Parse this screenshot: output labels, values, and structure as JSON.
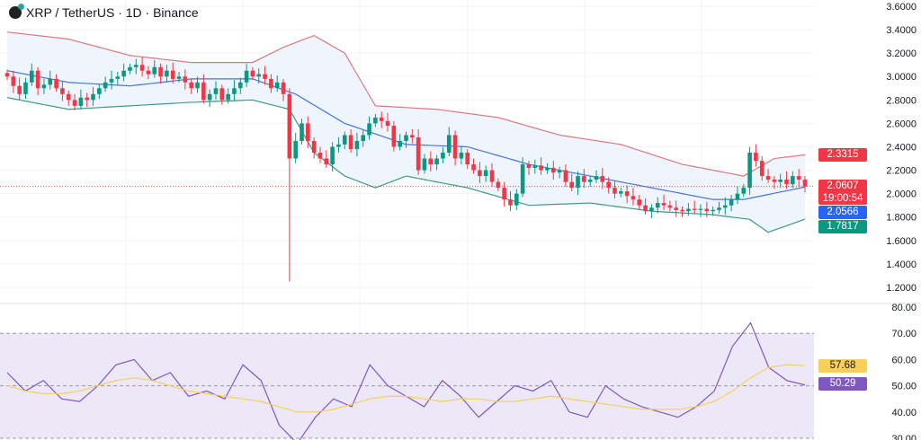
{
  "header": {
    "title": "XRP / TetherUS · 1D · Binance"
  },
  "tags": {
    "upper": "2.3315",
    "last": "2.0607",
    "countdown": "19:00:54",
    "middle": "2.0566",
    "lower": "1.7817",
    "rsi": "50.29",
    "rsi_ma": "57.68"
  },
  "colors": {
    "up": "#089981",
    "down": "#f23645",
    "upper_band": "#e0767f",
    "middle_band": "#4a72d8",
    "lower_band": "#3d9c86",
    "band_fill": "#eef5fd",
    "rsi": "#7e57c2",
    "rsi_ma": "#f7cf5a",
    "rsi_fill": "#ede8f8"
  },
  "chart_data": [
    {
      "type": "candlestick",
      "ylim": [
        1.2,
        3.6
      ],
      "yticks": [
        "3.6000",
        "3.4000",
        "3.2000",
        "3.0000",
        "2.8000",
        "2.6000",
        "2.4000",
        "2.2000",
        "2.0000",
        "1.8000",
        "1.6000",
        "1.4000",
        "1.2000"
      ],
      "closes": [
        3.0,
        2.92,
        2.85,
        2.95,
        3.05,
        2.9,
        2.93,
        2.98,
        2.9,
        2.85,
        2.8,
        2.75,
        2.82,
        2.8,
        2.85,
        2.9,
        2.95,
        2.98,
        3.0,
        3.05,
        3.08,
        3.1,
        3.05,
        3.02,
        3.08,
        3.0,
        3.05,
        2.98,
        3.0,
        2.95,
        2.9,
        2.95,
        2.8,
        2.85,
        2.9,
        2.8,
        2.85,
        2.9,
        2.95,
        3.05,
        3.0,
        3.02,
        2.98,
        2.9,
        2.95,
        2.85,
        2.3,
        2.45,
        2.6,
        2.45,
        2.35,
        2.3,
        2.25,
        2.4,
        2.42,
        2.5,
        2.38,
        2.45,
        2.5,
        2.6,
        2.65,
        2.62,
        2.58,
        2.4,
        2.45,
        2.5,
        2.48,
        2.2,
        2.3,
        2.25,
        2.3,
        2.35,
        2.5,
        2.3,
        2.35,
        2.25,
        2.2,
        2.15,
        2.2,
        2.1,
        2.05,
        1.95,
        1.9,
        2.0,
        2.25,
        2.22,
        2.24,
        2.2,
        2.22,
        2.18,
        2.2,
        2.1,
        2.05,
        2.15,
        2.1,
        2.12,
        2.15,
        2.1,
        2.05,
        2.0,
        2.02,
        1.98,
        1.95,
        1.9,
        1.85,
        1.88,
        1.92,
        1.9,
        1.88,
        1.86,
        1.85,
        1.87,
        1.86,
        1.87,
        1.85,
        1.86,
        1.88,
        1.9,
        1.95,
        2.0,
        2.05,
        2.35,
        2.28,
        2.15,
        2.12,
        2.1,
        2.12,
        2.08,
        2.15,
        2.12,
        2.0607
      ],
      "notable_low": {
        "index": 46,
        "value": 1.25
      },
      "bollinger": {
        "upper": [
          [
            0,
            3.38
          ],
          [
            10,
            3.32
          ],
          [
            20,
            3.18
          ],
          [
            30,
            3.12
          ],
          [
            40,
            3.12
          ],
          [
            45,
            3.25
          ],
          [
            50,
            3.35
          ],
          [
            55,
            3.2
          ],
          [
            60,
            2.75
          ],
          [
            70,
            2.72
          ],
          [
            80,
            2.65
          ],
          [
            90,
            2.5
          ],
          [
            100,
            2.42
          ],
          [
            110,
            2.25
          ],
          [
            120,
            2.15
          ],
          [
            125,
            2.3
          ],
          [
            130,
            2.3315
          ]
        ],
        "middle": [
          [
            0,
            3.05
          ],
          [
            10,
            2.95
          ],
          [
            20,
            2.92
          ],
          [
            30,
            2.98
          ],
          [
            40,
            2.98
          ],
          [
            47,
            2.85
          ],
          [
            55,
            2.6
          ],
          [
            65,
            2.42
          ],
          [
            75,
            2.4
          ],
          [
            85,
            2.25
          ],
          [
            95,
            2.15
          ],
          [
            105,
            2.05
          ],
          [
            115,
            1.95
          ],
          [
            120,
            1.95
          ],
          [
            130,
            2.0566
          ]
        ],
        "lower": [
          [
            0,
            2.82
          ],
          [
            10,
            2.72
          ],
          [
            20,
            2.75
          ],
          [
            30,
            2.78
          ],
          [
            40,
            2.8
          ],
          [
            46,
            2.72
          ],
          [
            50,
            2.35
          ],
          [
            55,
            2.15
          ],
          [
            60,
            2.05
          ],
          [
            65,
            2.15
          ],
          [
            75,
            2.05
          ],
          [
            85,
            1.9
          ],
          [
            95,
            1.92
          ],
          [
            105,
            1.85
          ],
          [
            115,
            1.82
          ],
          [
            121,
            1.78
          ],
          [
            124,
            1.67
          ],
          [
            130,
            1.7817
          ]
        ]
      }
    },
    {
      "type": "line",
      "ylim": [
        30,
        80
      ],
      "yticks": [
        "80.00",
        "70.00",
        "60.00",
        "50.00",
        "40.00",
        "30.00"
      ],
      "bands": [
        70,
        50,
        30
      ],
      "series": [
        {
          "values": [
            55,
            48,
            52,
            45,
            44,
            50,
            58,
            60,
            52,
            55,
            46,
            48,
            45,
            58,
            52,
            35,
            28,
            38,
            45,
            42,
            58,
            50,
            46,
            42,
            52,
            46,
            38,
            44,
            50,
            48,
            52,
            40,
            38,
            50,
            45,
            42,
            40,
            38,
            42,
            48,
            65,
            74,
            57,
            52,
            50.29
          ]
        },
        {
          "values": [
            50,
            48,
            47,
            47,
            48,
            50,
            52,
            53,
            52,
            50,
            48,
            47,
            46,
            45,
            44,
            42,
            40,
            40,
            41,
            43,
            45,
            46,
            46,
            45,
            44,
            45,
            45,
            44,
            44,
            45,
            46,
            45,
            44,
            43,
            42,
            41,
            41,
            41,
            42,
            44,
            48,
            53,
            57,
            58,
            57.68
          ]
        }
      ]
    }
  ]
}
